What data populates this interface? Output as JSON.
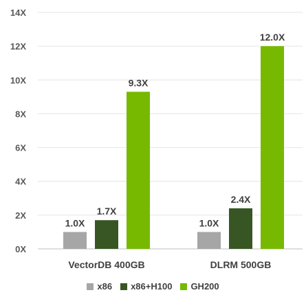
{
  "chart_data": {
    "type": "bar",
    "title": "",
    "xlabel": "",
    "ylabel": "",
    "categories": [
      "VectorDB 400GB",
      "DLRM 500GB"
    ],
    "series": [
      {
        "name": "x86",
        "values": [
          1.0,
          1.0
        ],
        "labels": [
          "1.0X",
          "1.0X"
        ],
        "color": "#a6a6a6"
      },
      {
        "name": "x86+H100",
        "values": [
          1.7,
          2.4
        ],
        "labels": [
          "1.7X",
          "2.4X"
        ],
        "color": "#375623"
      },
      {
        "name": "GH200",
        "values": [
          9.3,
          12.0
        ],
        "labels": [
          "9.3X",
          "12.0X"
        ],
        "color": "#76b900"
      }
    ],
    "ylim": [
      0,
      14
    ],
    "yticks": [
      0,
      2,
      4,
      6,
      8,
      10,
      12,
      14
    ],
    "ytick_labels": [
      "0X",
      "2X",
      "4X",
      "6X",
      "8X",
      "10X",
      "12X",
      "14X"
    ],
    "grid": true,
    "legend_position": "bottom"
  }
}
